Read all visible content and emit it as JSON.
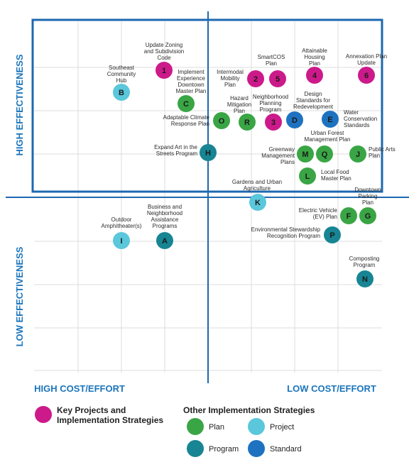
{
  "axes": {
    "high_effectiveness": "HIGH EFFECTIVENESS",
    "low_effectiveness": "LOW EFFECTIVENESS",
    "high_cost": "HIGH COST/EFFORT",
    "low_cost": "LOW COST/EFFORT"
  },
  "colors": {
    "key": "#cc1a8a",
    "plan": "#3aa545",
    "project": "#5bc7db",
    "program": "#178593",
    "standard": "#1f72c0",
    "frame": "#1d68b0"
  },
  "legend": {
    "key_line1": "Key Projects and",
    "key_line2": "Implementation Strategies",
    "other_title": "Other Implementation Strategies",
    "plan": "Plan",
    "project": "Project",
    "program": "Program",
    "standard": "Standard"
  },
  "items": [
    {
      "id": "1",
      "type": "key",
      "label": [
        "Update Zoning",
        "and Subdivision",
        "Code"
      ]
    },
    {
      "id": "2",
      "type": "key",
      "label": [
        "Intermodal",
        "Mobility",
        "Plan"
      ]
    },
    {
      "id": "5",
      "type": "key",
      "label": [
        "SmartCOS",
        "Plan"
      ]
    },
    {
      "id": "4",
      "type": "key",
      "label": [
        "Attainable",
        "Housing",
        "Plan"
      ]
    },
    {
      "id": "6",
      "type": "key",
      "label": [
        "Annexation Plan",
        "Update"
      ]
    },
    {
      "id": "3",
      "type": "key",
      "label": [
        "Neighborhood",
        "Planning",
        "Program"
      ]
    },
    {
      "id": "B",
      "type": "project",
      "label": [
        "Southeast",
        "Community",
        "Hub"
      ]
    },
    {
      "id": "C",
      "type": "plan",
      "label": [
        "Implement",
        "Experience",
        "Downtown",
        "Master Plan"
      ]
    },
    {
      "id": "O",
      "type": "plan",
      "label": [
        "Adaptable Climate",
        "Response Plan"
      ]
    },
    {
      "id": "R",
      "type": "plan",
      "label": [
        "Hazard",
        "Mitigation",
        "Plan"
      ]
    },
    {
      "id": "D",
      "type": "standard",
      "label": [
        "Design",
        "Standards for",
        "Redevelopment"
      ]
    },
    {
      "id": "E",
      "type": "standard",
      "label": [
        "Water",
        "Conservation",
        "Standards"
      ]
    },
    {
      "id": "H",
      "type": "program",
      "label": [
        "Expand Art in the",
        "Streets Program"
      ]
    },
    {
      "id": "M",
      "type": "plan",
      "label": [
        "Greenway",
        "Management",
        "Plans"
      ]
    },
    {
      "id": "Q",
      "type": "plan",
      "label": [
        "Urban Forest",
        "Management Plan"
      ]
    },
    {
      "id": "J",
      "type": "plan",
      "label": [
        "Public Arts",
        "Plan"
      ]
    },
    {
      "id": "L",
      "type": "plan",
      "label": [
        "Local Food",
        "Master Plan"
      ]
    },
    {
      "id": "K",
      "type": "project",
      "label": [
        "Gardens and Urban",
        "Agriculture"
      ]
    },
    {
      "id": "F",
      "type": "plan",
      "label": [
        "Electric Vehicle",
        "(EV) Plan"
      ]
    },
    {
      "id": "G",
      "type": "plan",
      "label": [
        "Downtown",
        "Parking",
        "Plan"
      ]
    },
    {
      "id": "P",
      "type": "program",
      "label": [
        "Environmental Stewardship",
        "Recognition Program"
      ]
    },
    {
      "id": "I",
      "type": "project",
      "label": [
        "Outdoor",
        "Amphitheater(s)"
      ]
    },
    {
      "id": "A",
      "type": "program",
      "label": [
        "Business and",
        "Neighborhood",
        "Assistance",
        "Programs"
      ]
    },
    {
      "id": "N",
      "type": "program",
      "label": [
        "Composting",
        "Program"
      ]
    }
  ]
}
